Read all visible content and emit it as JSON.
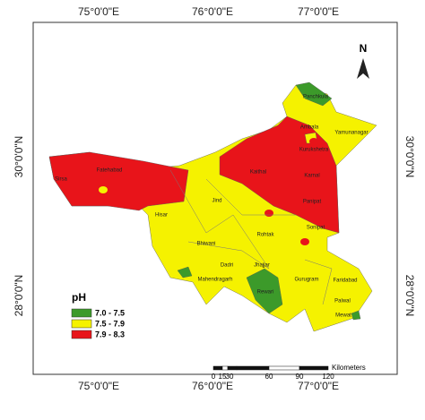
{
  "axis_labels": {
    "top": [
      "75°0'0\"E",
      "76°0'0\"E",
      "77°0'0\"E"
    ],
    "bottom": [
      "75°0'0\"E",
      "76°0'0\"E",
      "77°0'0\"E"
    ],
    "left": [
      "30°0'0\"N",
      "28°0'0\"N"
    ],
    "right": [
      "30°0'0\"N",
      "28°0'0\"N"
    ]
  },
  "north": "N",
  "legend": {
    "title": "pH",
    "items": [
      {
        "label": "7.0 - 7.5",
        "color": "#3c9a2a"
      },
      {
        "label": "7.5 - 7.9",
        "color": "#f5f200"
      },
      {
        "label": "7.9 - 8.3",
        "color": "#e8141a"
      }
    ]
  },
  "scale": {
    "unit": "Kilometers",
    "ticks": [
      "0",
      "15",
      "30",
      "60",
      "90",
      "120"
    ]
  },
  "districts": [
    "Panchkula",
    "Ambala",
    "Yamunanagar",
    "Kurukshetra",
    "Kaithal",
    "Karnal",
    "Panipat",
    "Sonipat",
    "Sirsa",
    "Fatehabad",
    "Hisar",
    "Jind",
    "Rohtak",
    "Bhiwani",
    "Dadri",
    "Jhajjar",
    "Mahendragarh",
    "Rewari",
    "Gurugram",
    "Faridabad",
    "Palwal",
    "Mewat"
  ]
}
